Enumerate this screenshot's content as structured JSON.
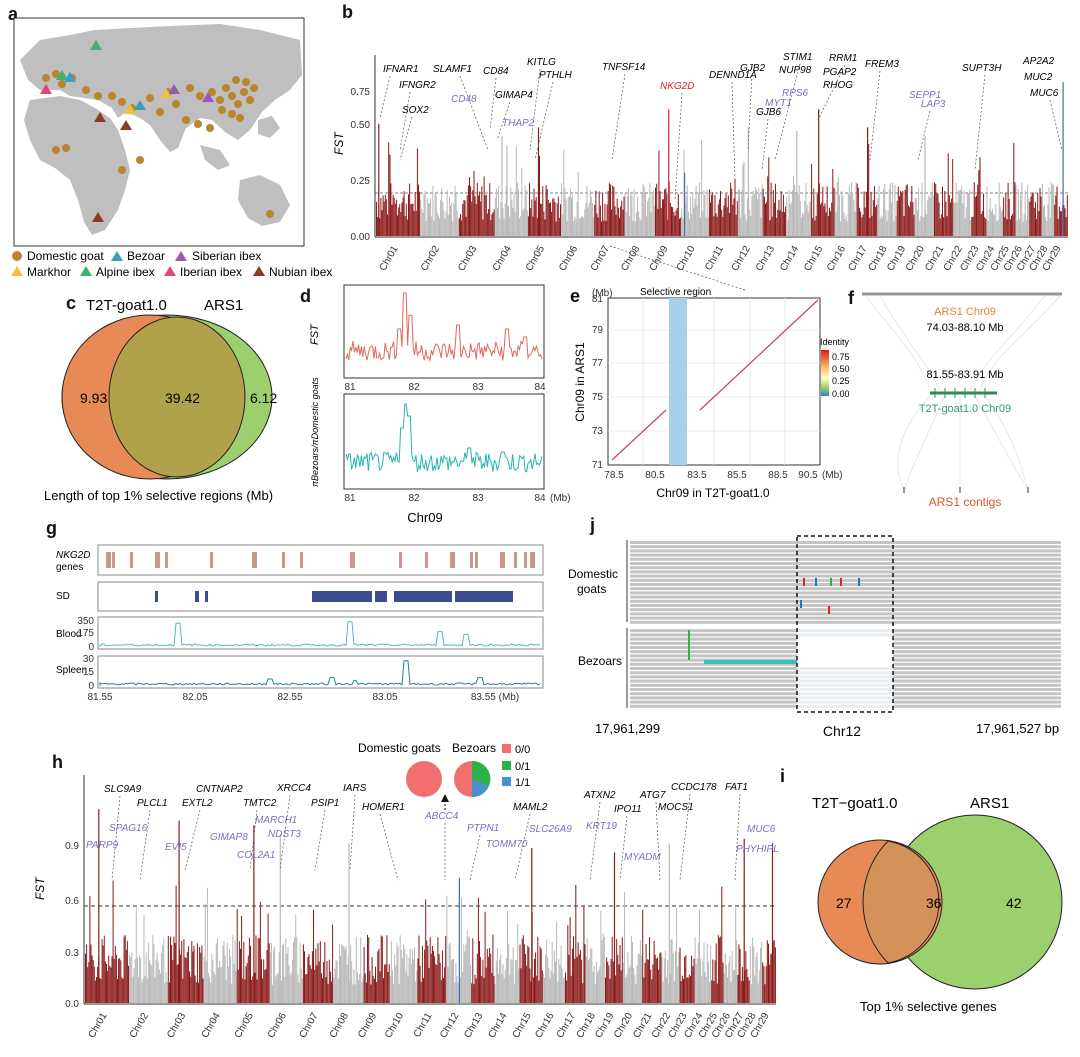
{
  "panels": {
    "a": {
      "label": "a",
      "legend": [
        {
          "name": "Domestic goat",
          "color": "#b8862b",
          "shape": "circle"
        },
        {
          "name": "Bezoar",
          "color": "#3a9fbf",
          "shape": "triangle"
        },
        {
          "name": "Siberian ibex",
          "color": "#9b59b6",
          "shape": "triangle"
        },
        {
          "name": "Markhor",
          "color": "#f0c040",
          "shape": "triangle"
        },
        {
          "name": "Alpine ibex",
          "color": "#3cb371",
          "shape": "triangle"
        },
        {
          "name": "Iberian ibex",
          "color": "#e0457b",
          "shape": "triangle"
        },
        {
          "name": "Nubian ibex",
          "color": "#8b3a2a",
          "shape": "triangle"
        }
      ]
    },
    "b": {
      "label": "b",
      "ylabel": "FST",
      "yticks": [
        "0.00",
        "0.25",
        "0.50",
        "0.75"
      ],
      "chroms": [
        "Chr01",
        "Chr02",
        "Chr03",
        "Chr04",
        "Chr05",
        "Chr06",
        "Chr07",
        "Chr08",
        "Chr09",
        "Chr10",
        "Chr11",
        "Chr12",
        "Chr13",
        "Chr14",
        "Chr15",
        "Chr16",
        "Chr17",
        "Chr18",
        "Chr19",
        "Chr20",
        "Chr21",
        "Chr22",
        "Chr23",
        "Chr24",
        "Chr25",
        "Chr26",
        "Chr27",
        "Chr28",
        "Chr29"
      ],
      "genes_black": [
        "IFNAR1",
        "IFNGR2",
        "SOX2",
        "SLAMF1",
        "CD84",
        "GIMAP4",
        "KITLG",
        "PTHLH",
        "TNFSF14",
        "DENND1A",
        "GJB2",
        "GJB6",
        "STIM1",
        "NUP98",
        "RRM1",
        "PGAP2",
        "RHOG",
        "FREM3",
        "SUPT3H",
        "AP2A2",
        "MUC2",
        "MUC6"
      ],
      "genes_purple": [
        "CD48",
        "THAP2",
        "MYT1",
        "RPS6",
        "SEPP1",
        "LAP3"
      ],
      "genes_red": [
        "NKG2D"
      ]
    },
    "c": {
      "label": "c",
      "set_left": "T2T-goat1.0",
      "set_right": "ARS1",
      "left_only": "9.93",
      "both": "39.42",
      "right_only": "6.12",
      "caption": "Length of top 1% selective regions  (Mb)"
    },
    "d": {
      "label": "d",
      "ylabel_top": "FST",
      "ylabel_bottom": "πBezoars/πDomestic goats",
      "xticks": [
        "81",
        "82",
        "83",
        "84"
      ],
      "xunit": "(Mb)",
      "xlabel": "Chr09"
    },
    "e": {
      "label": "e",
      "title": "Selective region",
      "yunit": "(Mb)",
      "yticks": [
        "71",
        "73",
        "75",
        "77",
        "79",
        "81"
      ],
      "xticks": [
        "78.5",
        "80.5",
        "83.5",
        "85.5",
        "88.5",
        "90.5"
      ],
      "xunit": "(Mb)",
      "xlabel": "Chr09 in T2T-goat1.0",
      "ylabel": "Chr09 in ARS1",
      "legend_title": "Identity",
      "legend_ticks": [
        "0.75",
        "0.50",
        "0.25",
        "0.00"
      ]
    },
    "f": {
      "label": "f",
      "top_label": "ARS1 Chr09",
      "top_range": "74.03-88.10 Mb",
      "mid_range": "81.55-83.91 Mb",
      "mid_label": "T2T-goat1.0 Chr09",
      "bottom_label": "ARS1 contigs"
    },
    "g": {
      "label": "g",
      "track1": "NKG2D genes",
      "track1_a": "NKG2D",
      "track1_b": "genes",
      "track2": "SD",
      "track3": "Blood",
      "track3_ticks": [
        "350",
        "175",
        "0"
      ],
      "track4": "Spleen",
      "track4_ticks": [
        "30",
        "15",
        "0"
      ],
      "xticks": [
        "81.55",
        "82.05",
        "82.55",
        "83.05",
        "83.55 (Mb)"
      ]
    },
    "h": {
      "label": "h",
      "ylabel": "FST",
      "yticks": [
        "0.0",
        "0.3",
        "0.6",
        "0.9"
      ],
      "chroms": [
        "Chr01",
        "Chr02",
        "Chr03",
        "Chr04",
        "Chr05",
        "Chr06",
        "Chr07",
        "Chr08",
        "Chr09",
        "Chr10",
        "Chr11",
        "Chr12",
        "Chr13",
        "Chr14",
        "Chr15",
        "Chr16",
        "Chr17",
        "Chr18",
        "Chr19",
        "Chr20",
        "Chr21",
        "Chr22",
        "Chr23",
        "Chr24",
        "Chr25",
        "Chr26",
        "Chr27",
        "Chr28",
        "Chr29"
      ],
      "genes_black": [
        "SLC9A9",
        "PLCL1",
        "CNTNAP2",
        "EXTL2",
        "XRCC4",
        "TMTC2",
        "PSIP1",
        "IARS",
        "HOMER1",
        "MAML2",
        "ATXN2",
        "IPO11",
        "ATG7",
        "CCDC178",
        "MOCS1",
        "FAT1"
      ],
      "genes_purple": [
        "SPAG16",
        "PARP9",
        "EVI5",
        "GIMAP8",
        "MARCH1",
        "NDST3",
        "COL2A1",
        "ABCC4",
        "PTPN1",
        "TOMM70",
        "SLC26A9",
        "KRT19",
        "MYADM",
        "MUC6",
        "PHYHIPL"
      ],
      "pie_left_title": "Domestic goats",
      "pie_right_title": "Bezoars",
      "pie_legend": [
        {
          "name": "0/0",
          "color": "#f06e6e"
        },
        {
          "name": "0/1",
          "color": "#2bb34a"
        },
        {
          "name": "1/1",
          "color": "#4a8fd0"
        }
      ]
    },
    "i": {
      "label": "i",
      "set_left": "T2T−goat1.0",
      "set_right": "ARS1",
      "left_only": "27",
      "both": "36",
      "right_only": "42",
      "caption": "Top 1% selective genes"
    },
    "j": {
      "label": "j",
      "group_top": "Domestic goats",
      "group_top_a": "Domestic",
      "group_top_b": "goats",
      "group_bottom": "Bezoars",
      "left_coord": "17,961,299",
      "center_label": "Chr12",
      "right_coord": "17,961,527 bp"
    }
  },
  "colors": {
    "manhattan_red": "#8b1a1a",
    "manhattan_gray": "#b9b9b9",
    "highlight_blue": "#3f6fb5",
    "venn_left": "#e88a55",
    "venn_right": "#9ccf6e",
    "purple_gene": "#7b6fc2",
    "red_gene": "#d6262b"
  }
}
